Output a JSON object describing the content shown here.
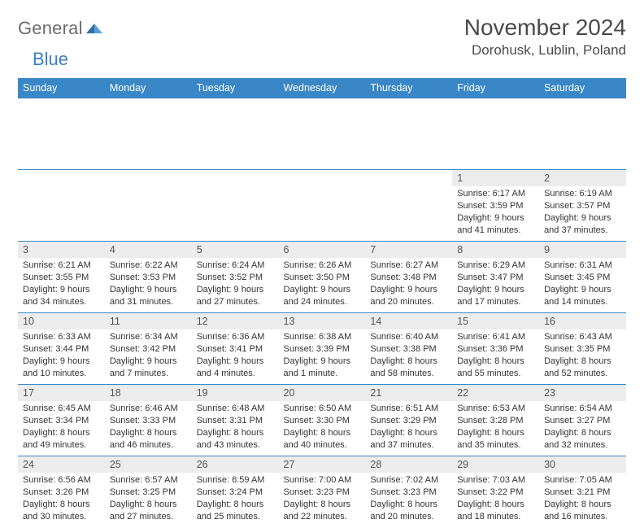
{
  "brand": {
    "part1": "General",
    "part2": "Blue"
  },
  "header": {
    "month_title": "November 2024",
    "location": "Dorohusk, Lublin, Poland"
  },
  "colors": {
    "header_bg": "#3a87c7",
    "header_text": "#ffffff",
    "daynum_bg": "#ececec",
    "border": "#3a87c7",
    "text": "#333333",
    "brand_gray": "#6b6b6b",
    "brand_blue": "#3a7fbf"
  },
  "weekdays": [
    "Sunday",
    "Monday",
    "Tuesday",
    "Wednesday",
    "Thursday",
    "Friday",
    "Saturday"
  ],
  "weeks": [
    [
      null,
      null,
      null,
      null,
      null,
      {
        "n": "1",
        "sr": "Sunrise: 6:17 AM",
        "ss": "Sunset: 3:59 PM",
        "dl": "Daylight: 9 hours and 41 minutes."
      },
      {
        "n": "2",
        "sr": "Sunrise: 6:19 AM",
        "ss": "Sunset: 3:57 PM",
        "dl": "Daylight: 9 hours and 37 minutes."
      }
    ],
    [
      {
        "n": "3",
        "sr": "Sunrise: 6:21 AM",
        "ss": "Sunset: 3:55 PM",
        "dl": "Daylight: 9 hours and 34 minutes."
      },
      {
        "n": "4",
        "sr": "Sunrise: 6:22 AM",
        "ss": "Sunset: 3:53 PM",
        "dl": "Daylight: 9 hours and 31 minutes."
      },
      {
        "n": "5",
        "sr": "Sunrise: 6:24 AM",
        "ss": "Sunset: 3:52 PM",
        "dl": "Daylight: 9 hours and 27 minutes."
      },
      {
        "n": "6",
        "sr": "Sunrise: 6:26 AM",
        "ss": "Sunset: 3:50 PM",
        "dl": "Daylight: 9 hours and 24 minutes."
      },
      {
        "n": "7",
        "sr": "Sunrise: 6:27 AM",
        "ss": "Sunset: 3:48 PM",
        "dl": "Daylight: 9 hours and 20 minutes."
      },
      {
        "n": "8",
        "sr": "Sunrise: 6:29 AM",
        "ss": "Sunset: 3:47 PM",
        "dl": "Daylight: 9 hours and 17 minutes."
      },
      {
        "n": "9",
        "sr": "Sunrise: 6:31 AM",
        "ss": "Sunset: 3:45 PM",
        "dl": "Daylight: 9 hours and 14 minutes."
      }
    ],
    [
      {
        "n": "10",
        "sr": "Sunrise: 6:33 AM",
        "ss": "Sunset: 3:44 PM",
        "dl": "Daylight: 9 hours and 10 minutes."
      },
      {
        "n": "11",
        "sr": "Sunrise: 6:34 AM",
        "ss": "Sunset: 3:42 PM",
        "dl": "Daylight: 9 hours and 7 minutes."
      },
      {
        "n": "12",
        "sr": "Sunrise: 6:36 AM",
        "ss": "Sunset: 3:41 PM",
        "dl": "Daylight: 9 hours and 4 minutes."
      },
      {
        "n": "13",
        "sr": "Sunrise: 6:38 AM",
        "ss": "Sunset: 3:39 PM",
        "dl": "Daylight: 9 hours and 1 minute."
      },
      {
        "n": "14",
        "sr": "Sunrise: 6:40 AM",
        "ss": "Sunset: 3:38 PM",
        "dl": "Daylight: 8 hours and 58 minutes."
      },
      {
        "n": "15",
        "sr": "Sunrise: 6:41 AM",
        "ss": "Sunset: 3:36 PM",
        "dl": "Daylight: 8 hours and 55 minutes."
      },
      {
        "n": "16",
        "sr": "Sunrise: 6:43 AM",
        "ss": "Sunset: 3:35 PM",
        "dl": "Daylight: 8 hours and 52 minutes."
      }
    ],
    [
      {
        "n": "17",
        "sr": "Sunrise: 6:45 AM",
        "ss": "Sunset: 3:34 PM",
        "dl": "Daylight: 8 hours and 49 minutes."
      },
      {
        "n": "18",
        "sr": "Sunrise: 6:46 AM",
        "ss": "Sunset: 3:33 PM",
        "dl": "Daylight: 8 hours and 46 minutes."
      },
      {
        "n": "19",
        "sr": "Sunrise: 6:48 AM",
        "ss": "Sunset: 3:31 PM",
        "dl": "Daylight: 8 hours and 43 minutes."
      },
      {
        "n": "20",
        "sr": "Sunrise: 6:50 AM",
        "ss": "Sunset: 3:30 PM",
        "dl": "Daylight: 8 hours and 40 minutes."
      },
      {
        "n": "21",
        "sr": "Sunrise: 6:51 AM",
        "ss": "Sunset: 3:29 PM",
        "dl": "Daylight: 8 hours and 37 minutes."
      },
      {
        "n": "22",
        "sr": "Sunrise: 6:53 AM",
        "ss": "Sunset: 3:28 PM",
        "dl": "Daylight: 8 hours and 35 minutes."
      },
      {
        "n": "23",
        "sr": "Sunrise: 6:54 AM",
        "ss": "Sunset: 3:27 PM",
        "dl": "Daylight: 8 hours and 32 minutes."
      }
    ],
    [
      {
        "n": "24",
        "sr": "Sunrise: 6:56 AM",
        "ss": "Sunset: 3:26 PM",
        "dl": "Daylight: 8 hours and 30 minutes."
      },
      {
        "n": "25",
        "sr": "Sunrise: 6:57 AM",
        "ss": "Sunset: 3:25 PM",
        "dl": "Daylight: 8 hours and 27 minutes."
      },
      {
        "n": "26",
        "sr": "Sunrise: 6:59 AM",
        "ss": "Sunset: 3:24 PM",
        "dl": "Daylight: 8 hours and 25 minutes."
      },
      {
        "n": "27",
        "sr": "Sunrise: 7:00 AM",
        "ss": "Sunset: 3:23 PM",
        "dl": "Daylight: 8 hours and 22 minutes."
      },
      {
        "n": "28",
        "sr": "Sunrise: 7:02 AM",
        "ss": "Sunset: 3:23 PM",
        "dl": "Daylight: 8 hours and 20 minutes."
      },
      {
        "n": "29",
        "sr": "Sunrise: 7:03 AM",
        "ss": "Sunset: 3:22 PM",
        "dl": "Daylight: 8 hours and 18 minutes."
      },
      {
        "n": "30",
        "sr": "Sunrise: 7:05 AM",
        "ss": "Sunset: 3:21 PM",
        "dl": "Daylight: 8 hours and 16 minutes."
      }
    ]
  ]
}
